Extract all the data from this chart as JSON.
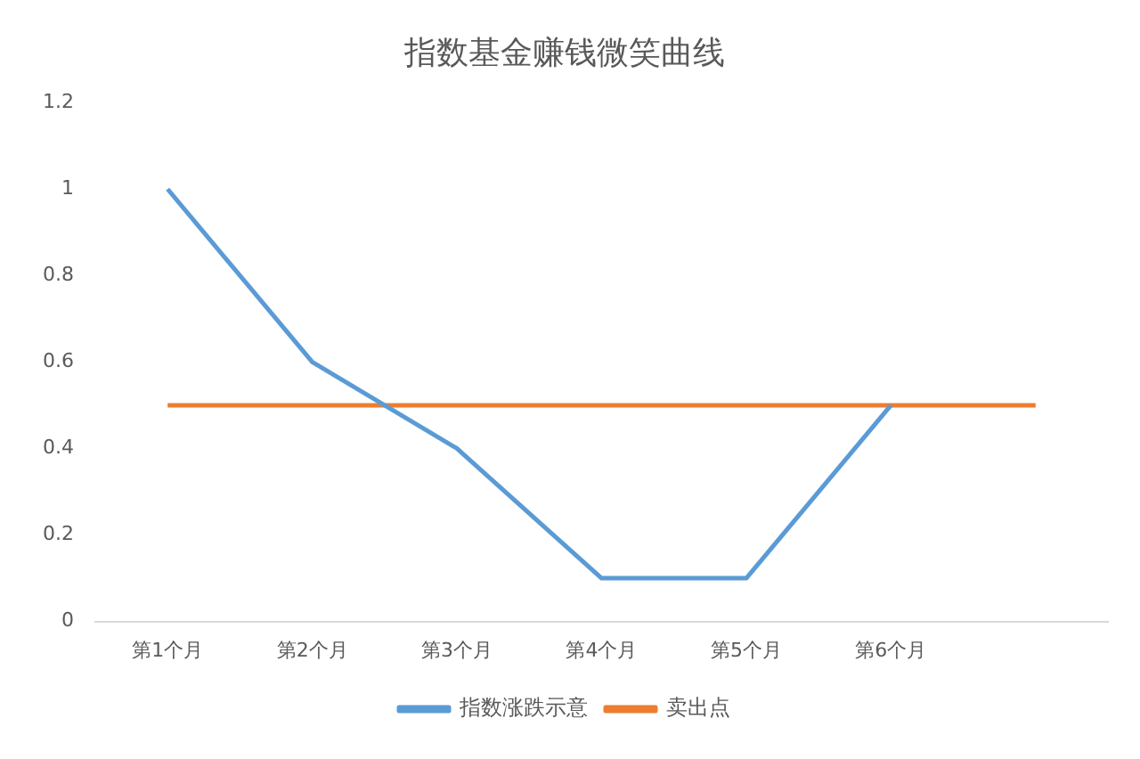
{
  "chart_data": {
    "type": "line",
    "title": "指数基金赚钱微笑曲线",
    "categories": [
      "第1个月",
      "第2个月",
      "第3个月",
      "第4个月",
      "第5个月",
      "第6个月",
      null
    ],
    "series": [
      {
        "name": "指数涨跌示意",
        "color": "#5b9bd5",
        "values": [
          1,
          0.6,
          0.4,
          0.1,
          0.1,
          0.5,
          null
        ]
      },
      {
        "name": "卖出点",
        "color": "#ed7d31",
        "values": [
          0.5,
          0.5,
          0.5,
          0.5,
          0.5,
          0.5,
          0.5
        ]
      }
    ],
    "ylim": [
      0,
      1.2
    ],
    "yticks": [
      0,
      0.2,
      0.4,
      0.6,
      0.8,
      1,
      1.2
    ],
    "grid": false,
    "legend": "bottom",
    "marker": "none",
    "line_style": "solid"
  }
}
